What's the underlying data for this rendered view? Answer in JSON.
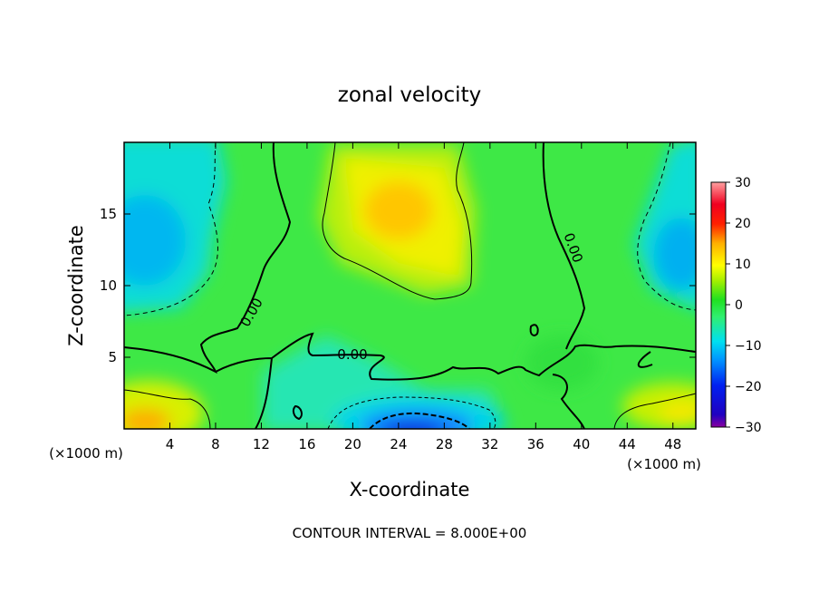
{
  "chart_data": {
    "type": "heatmap",
    "title": "zonal velocity",
    "xlabel": "X-coordinate",
    "ylabel": "Z-coordinate",
    "x_unit": "(×1000 m)",
    "x_unit_right": "(×1000 m)",
    "xlim": [
      0,
      50
    ],
    "ylim": [
      0,
      20
    ],
    "x_ticks": [
      4,
      8,
      12,
      16,
      20,
      24,
      28,
      32,
      36,
      40,
      44,
      48
    ],
    "x_tick_labels": [
      "4",
      "8",
      "12",
      "16",
      "20",
      "24",
      "28",
      "32",
      "36",
      "40",
      "44",
      "48"
    ],
    "y_ticks": [
      5,
      10,
      15
    ],
    "y_tick_labels": [
      "5",
      "10",
      "15"
    ],
    "colorbar": {
      "range": [
        -30,
        30
      ],
      "ticks": [
        30,
        20,
        10,
        0,
        -10,
        -20,
        -30
      ],
      "tick_labels": [
        "30",
        "20",
        "10",
        "0",
        "−10",
        "−20",
        "−30"
      ]
    },
    "contour_labels": [
      "0.00",
      "0.00",
      "0.00"
    ],
    "contour_interval_text": "CONTOUR INTERVAL = 8.000E+00",
    "features": [
      {
        "name": "upper-center jet max",
        "x": 24,
        "z": 15,
        "value": 14
      },
      {
        "name": "left upper min",
        "x": 1,
        "z": 12,
        "value": -9
      },
      {
        "name": "right upper min",
        "x": 49,
        "z": 12,
        "value": -10
      },
      {
        "name": "bottom-center min",
        "x": 25,
        "z": 0.2,
        "value": -25
      },
      {
        "name": "bottom-left max",
        "x": 2,
        "z": 0.5,
        "value": 14
      },
      {
        "name": "bottom-right max",
        "x": 48,
        "z": 1.5,
        "value": 10
      }
    ]
  }
}
